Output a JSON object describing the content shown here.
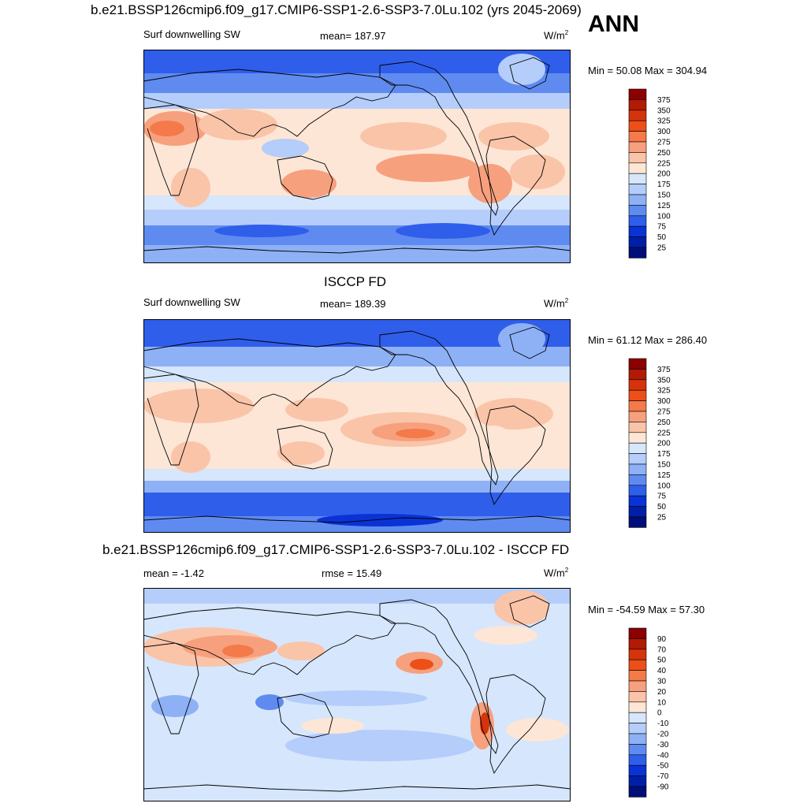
{
  "season": "ANN",
  "panels": [
    {
      "id": "model",
      "title": "b.e21.BSSP126cmip6.f09_g17.CMIP6-SSP1-2.6-SSP3-7.0Lu.102 (yrs 2045-2069)",
      "left_label": "Surf downwelling SW",
      "center_label": "mean= 187.97",
      "units_base": "W/m",
      "units_exp": "2",
      "minmax": "Min =  50.08 Max = 304.94",
      "colorbar": [
        "375",
        "350",
        "325",
        "300",
        "275",
        "250",
        "225",
        "200",
        "175",
        "150",
        "125",
        "100",
        "75",
        "50",
        "25"
      ]
    },
    {
      "id": "obs",
      "title": "ISCCP FD",
      "left_label": "Surf downwelling SW",
      "center_label": "mean= 189.39",
      "units_base": "W/m",
      "units_exp": "2",
      "minmax": "Min =  61.12 Max = 286.40",
      "colorbar": [
        "375",
        "350",
        "325",
        "300",
        "275",
        "250",
        "225",
        "200",
        "175",
        "150",
        "125",
        "100",
        "75",
        "50",
        "25"
      ]
    },
    {
      "id": "diff",
      "title": "b.e21.BSSP126cmip6.f09_g17.CMIP6-SSP1-2.6-SSP3-7.0Lu.102 - ISCCP FD",
      "left_label": "mean =  -1.42",
      "center_label": "rmse =  15.49",
      "units_base": "W/m",
      "units_exp": "2",
      "minmax": "Min = -54.59 Max =  57.30",
      "colorbar": [
        "90",
        "70",
        "50",
        "40",
        "30",
        "20",
        "10",
        "0",
        "-10",
        "-20",
        "-30",
        "-40",
        "-50",
        "-70",
        "-90"
      ]
    }
  ],
  "colors": {
    "scale": [
      "#8b0000",
      "#b11a05",
      "#d4340c",
      "#ec5018",
      "#f47a4a",
      "#f7a07e",
      "#fac4a8",
      "#fde6d6",
      "#d6e6fc",
      "#b4cdfa",
      "#8eb1f5",
      "#5f8bf0",
      "#2f5eeb",
      "#0a33d6",
      "#001fa8",
      "#000e7a"
    ]
  }
}
